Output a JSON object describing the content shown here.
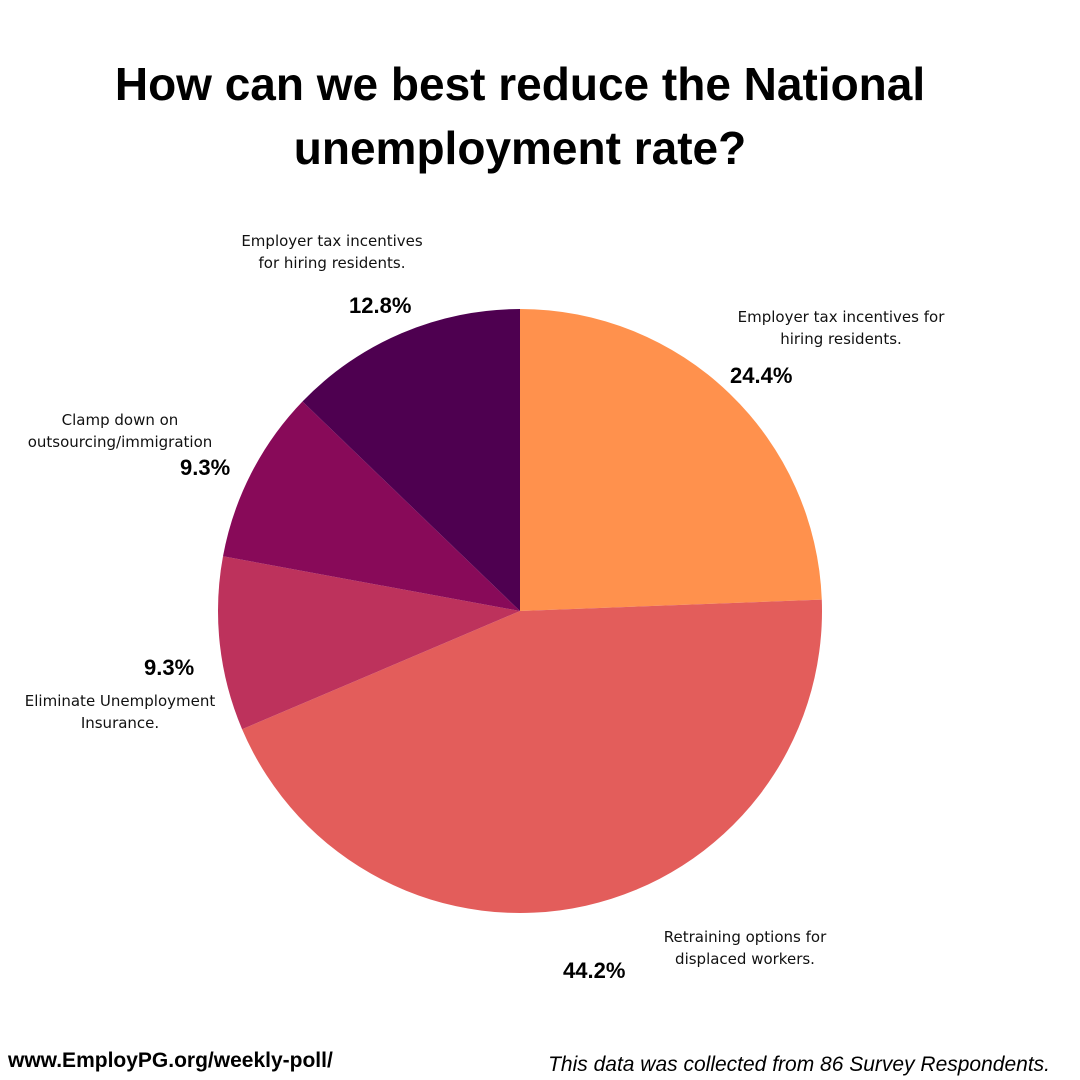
{
  "chart_data": {
    "type": "pie",
    "title_lines": [
      "How can we best reduce the National",
      "unemployment rate?"
    ],
    "slices": [
      {
        "label": "Employer tax incentives for hiring residents.",
        "value": 24.4,
        "value_label": "24.4%",
        "color": "#FF914D"
      },
      {
        "label": "Retraining options for displaced workers.",
        "value": 44.2,
        "value_label": "44.2%",
        "color": "#E35D5B"
      },
      {
        "label": "Eliminate Unemployment Insurance.",
        "value": 9.3,
        "value_label": "9.3%",
        "color": "#BD325C"
      },
      {
        "label": "Clamp down on outsourcing/immigration",
        "value": 9.3,
        "value_label": "9.3%",
        "color": "#880A59"
      },
      {
        "label": "Employer tax incentives for hiring residents.",
        "value": 12.8,
        "value_label": "12.8%",
        "color": "#4E0050"
      }
    ]
  },
  "footer": {
    "url": "www.EmployPG.org/weekly-poll/",
    "note": "This data was collected from 86 Survey Respondents."
  }
}
